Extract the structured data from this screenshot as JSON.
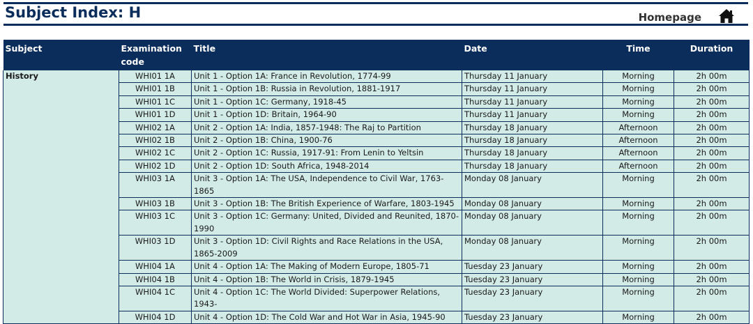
{
  "header": {
    "title": "Subject Index: H",
    "homepage_label": "Homepage",
    "home_icon": "home-icon"
  },
  "table": {
    "columns": [
      "Subject",
      "Examination code",
      "Title",
      "Date",
      "Time",
      "Duration"
    ],
    "subject": "History",
    "rows": [
      {
        "code": "WHI01 1A",
        "title": "Unit 1 - Option 1A: France in Revolution, 1774-99",
        "date": "Thursday 11 January",
        "time": "Morning",
        "duration": "2h 00m"
      },
      {
        "code": "WHI01 1B",
        "title": "Unit 1 - Option 1B: Russia in Revolution, 1881-1917",
        "date": "Thursday 11 January",
        "time": "Morning",
        "duration": "2h 00m"
      },
      {
        "code": "WHI01 1C",
        "title": "Unit 1 - Option 1C: Germany, 1918-45",
        "date": "Thursday 11 January",
        "time": "Morning",
        "duration": "2h 00m"
      },
      {
        "code": "WHI01 1D",
        "title": "Unit 1 - Option 1D: Britain, 1964-90",
        "date": "Thursday 11 January",
        "time": "Morning",
        "duration": "2h 00m"
      },
      {
        "code": "WHI02 1A",
        "title": "Unit 2 - Option 1A: India, 1857-1948: The Raj to Partition",
        "date": "Thursday 18 January",
        "time": "Afternoon",
        "duration": "2h 00m"
      },
      {
        "code": "WHI02 1B",
        "title": "Unit 2 - Option 1B: China, 1900-76",
        "date": "Thursday 18 January",
        "time": "Afternoon",
        "duration": "2h 00m"
      },
      {
        "code": "WHI02 1C",
        "title": "Unit 2 - Option 1C: Russia, 1917-91: From Lenin to Yeltsin",
        "date": "Thursday 18 January",
        "time": "Afternoon",
        "duration": "2h 00m"
      },
      {
        "code": "WHI02 1D",
        "title": "Unit 2 - Option 1D: South Africa, 1948-2014",
        "date": "Thursday 18 January",
        "time": "Afternoon",
        "duration": "2h 00m"
      },
      {
        "code": "WHI03 1A",
        "title": "Unit 3 - Option 1A: The USA, Independence to Civil War, 1763-1865",
        "date": "Monday 08 January",
        "time": "Morning",
        "duration": "2h 00m"
      },
      {
        "code": "WHI03 1B",
        "title": "Unit 3 - Option 1B: The British Experience of Warfare, 1803-1945",
        "date": "Monday 08 January",
        "time": "Morning",
        "duration": "2h 00m"
      },
      {
        "code": "WHI03 1C",
        "title": "Unit 3 - Option 1C: Germany: United, Divided and Reunited, 1870-1990",
        "date": "Monday 08 January",
        "time": "Morning",
        "duration": "2h 00m"
      },
      {
        "code": "WHI03 1D",
        "title": "Unit 3 - Option 1D: Civil Rights and Race Relations in the USA, 1865-2009",
        "date": "Monday 08 January",
        "time": "Morning",
        "duration": "2h 00m"
      },
      {
        "code": "WHI04 1A",
        "title": "Unit 4 - Option 1A: The Making of Modern Europe, 1805-71",
        "date": "Tuesday 23 January",
        "time": "Morning",
        "duration": "2h 00m"
      },
      {
        "code": "WHI04 1B",
        "title": "Unit 4 - Option 1B: The World in Crisis, 1879-1945",
        "date": "Tuesday 23 January",
        "time": "Morning",
        "duration": "2h 00m"
      },
      {
        "code": "WHI04 1C",
        "title": "Unit 4 - Option 1C: The World Divided: Superpower Relations, 1943-",
        "date": "Tuesday 23 January",
        "time": "Morning",
        "duration": "2h 00m"
      },
      {
        "code": "WHI04 1D",
        "title": "Unit 4 - Option 1D: The Cold War and Hot War in Asia, 1945-90",
        "date": "Tuesday 23 January",
        "time": "Morning",
        "duration": "2h 00m"
      }
    ]
  },
  "colors": {
    "navy": "#0b2d5b",
    "row_fill": "#d2ebe6"
  }
}
